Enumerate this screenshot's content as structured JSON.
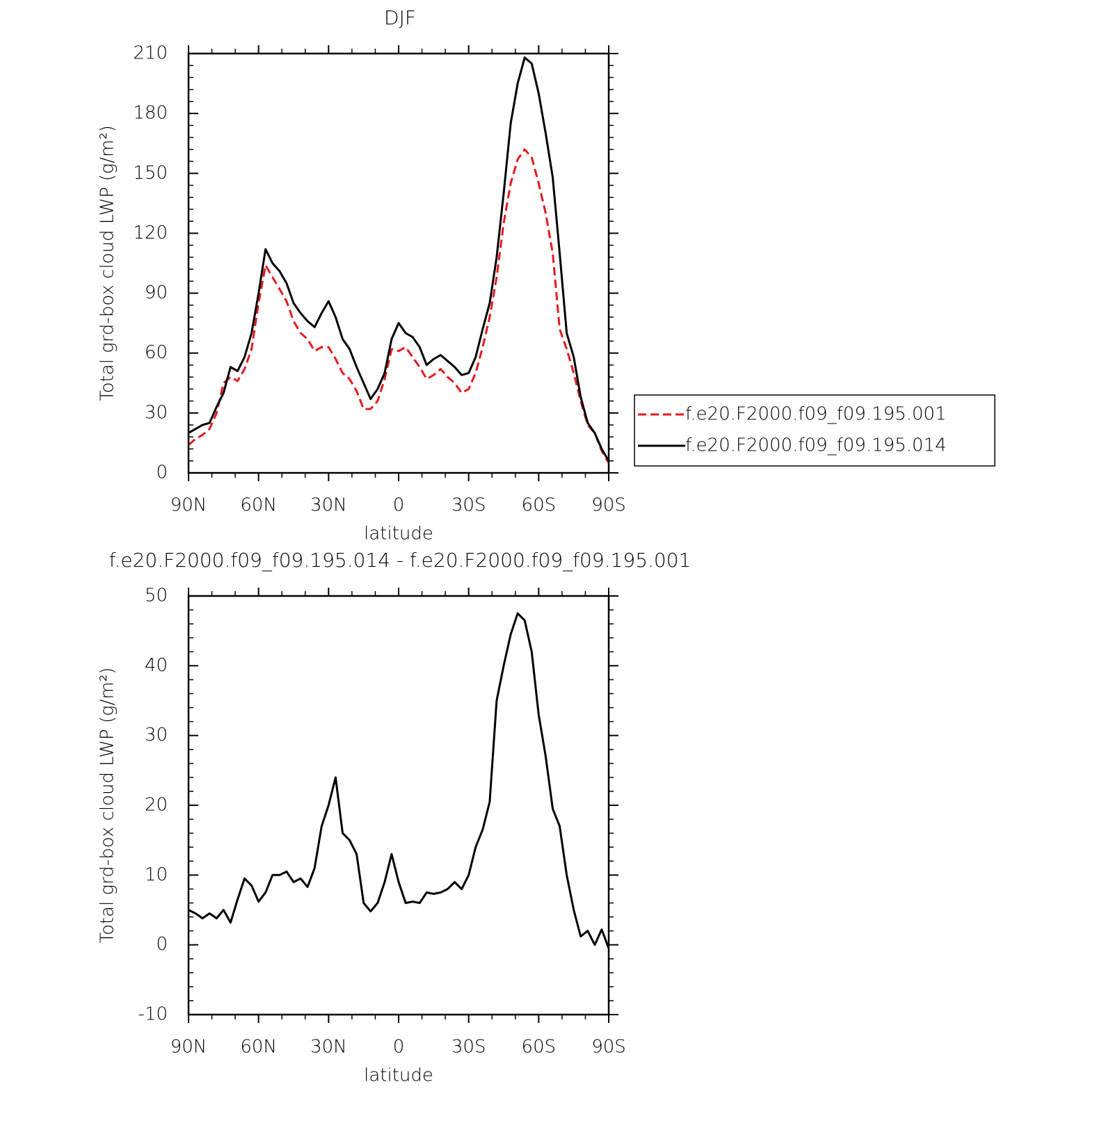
{
  "chart_data": [
    {
      "type": "line",
      "title": "DJF",
      "x_label": "latitude",
      "y_label": "Total grd-box cloud LWP (g/m²)",
      "x": [
        90,
        87,
        84,
        81,
        78,
        75,
        72,
        69,
        66,
        63,
        60,
        57,
        54,
        51,
        48,
        45,
        42,
        39,
        36,
        33,
        30,
        27,
        24,
        21,
        18,
        15,
        12,
        9,
        6,
        3,
        0,
        -3,
        -6,
        -9,
        -12,
        -15,
        -18,
        -21,
        -24,
        -27,
        -30,
        -33,
        -36,
        -39,
        -42,
        -45,
        -48,
        -51,
        -54,
        -57,
        -60,
        -63,
        -66,
        -69,
        -72,
        -75,
        -78,
        -81,
        -84,
        -87,
        -90
      ],
      "xlim": [
        90,
        -90
      ],
      "xticks": [
        {
          "value": 90,
          "label": "90N"
        },
        {
          "value": 60,
          "label": "60N"
        },
        {
          "value": 30,
          "label": "30N"
        },
        0,
        {
          "value": -30,
          "label": "30S"
        },
        {
          "value": -60,
          "label": "60S"
        },
        {
          "value": -90,
          "label": "90S"
        }
      ],
      "ylim": [
        0,
        210
      ],
      "yticks": [
        0,
        30,
        60,
        90,
        120,
        150,
        180,
        210
      ],
      "legend": "right",
      "series": [
        {
          "name": "f.e20.F2000.f09_f09.195.001",
          "color": "#e31a1c",
          "linestyle": "dashed",
          "values": [
            14,
            17,
            19,
            22,
            30,
            45,
            48,
            46,
            52,
            62,
            85,
            104,
            98,
            92,
            86,
            76,
            70,
            67,
            61,
            63,
            63,
            57,
            50,
            47,
            41,
            32,
            32,
            36,
            47,
            62,
            61,
            63,
            58,
            53,
            47,
            49,
            52,
            48,
            45,
            40,
            42,
            50,
            63,
            78,
            98,
            125,
            145,
            157,
            162,
            158,
            145,
            130,
            110,
            72,
            62,
            50,
            36,
            24,
            20,
            11,
            5
          ]
        },
        {
          "name": "f.e20.F2000.f09_f09.195.014",
          "color": "#000000",
          "linestyle": "solid",
          "values": [
            20,
            22,
            24,
            25,
            33,
            40,
            53,
            51,
            58,
            70,
            90,
            112,
            105,
            101,
            95,
            85,
            80,
            76,
            73,
            80,
            86,
            78,
            67,
            62,
            53,
            45,
            37,
            42,
            50,
            67,
            75,
            70,
            68,
            63,
            54,
            57,
            59,
            56,
            53,
            49,
            50,
            58,
            72,
            85,
            108,
            140,
            175,
            195,
            208,
            205,
            190,
            170,
            148,
            110,
            70,
            58,
            38,
            25,
            20,
            12,
            6
          ]
        }
      ]
    },
    {
      "type": "line",
      "title": "f.e20.F2000.f09_f09.195.014 - f.e20.F2000.f09_f09.195.001",
      "x_label": "latitude",
      "y_label": "Total grd-box cloud LWP (g/m²)",
      "x": [
        90,
        87,
        84,
        81,
        78,
        75,
        72,
        69,
        66,
        63,
        60,
        57,
        54,
        51,
        48,
        45,
        42,
        39,
        36,
        33,
        30,
        27,
        24,
        21,
        18,
        15,
        12,
        9,
        6,
        3,
        0,
        -3,
        -6,
        -9,
        -12,
        -15,
        -18,
        -21,
        -24,
        -27,
        -30,
        -33,
        -36,
        -39,
        -42,
        -45,
        -48,
        -51,
        -54,
        -57,
        -60,
        -63,
        -66,
        -69,
        -72,
        -75,
        -78,
        -81,
        -84,
        -87,
        -90
      ],
      "xlim": [
        90,
        -90
      ],
      "xticks": [
        {
          "value": 90,
          "label": "90N"
        },
        {
          "value": 60,
          "label": "60N"
        },
        {
          "value": 30,
          "label": "30N"
        },
        0,
        {
          "value": -30,
          "label": "30S"
        },
        {
          "value": -60,
          "label": "60S"
        },
        {
          "value": -90,
          "label": "90S"
        }
      ],
      "ylim": [
        -10,
        50
      ],
      "yticks": [
        -10,
        0,
        10,
        20,
        30,
        40,
        50
      ],
      "series": [
        {
          "color": "#000000",
          "linestyle": "solid",
          "values": [
            5,
            4.5,
            3.8,
            4.5,
            3.8,
            5,
            3.2,
            6.5,
            9.5,
            8.5,
            6.2,
            7.5,
            10,
            10,
            10.5,
            9,
            9.5,
            8.3,
            11,
            17,
            20,
            24,
            16,
            15,
            13,
            6,
            4.8,
            6,
            9,
            13,
            9,
            6,
            6.2,
            6,
            7.5,
            7.3,
            7.5,
            8,
            9,
            8,
            10,
            14,
            16.5,
            20.5,
            35,
            40,
            44.5,
            47.5,
            46.5,
            42,
            33,
            27,
            19.5,
            17,
            10,
            5,
            1.2,
            2,
            0,
            2.2,
            -0.5
          ]
        }
      ]
    }
  ]
}
